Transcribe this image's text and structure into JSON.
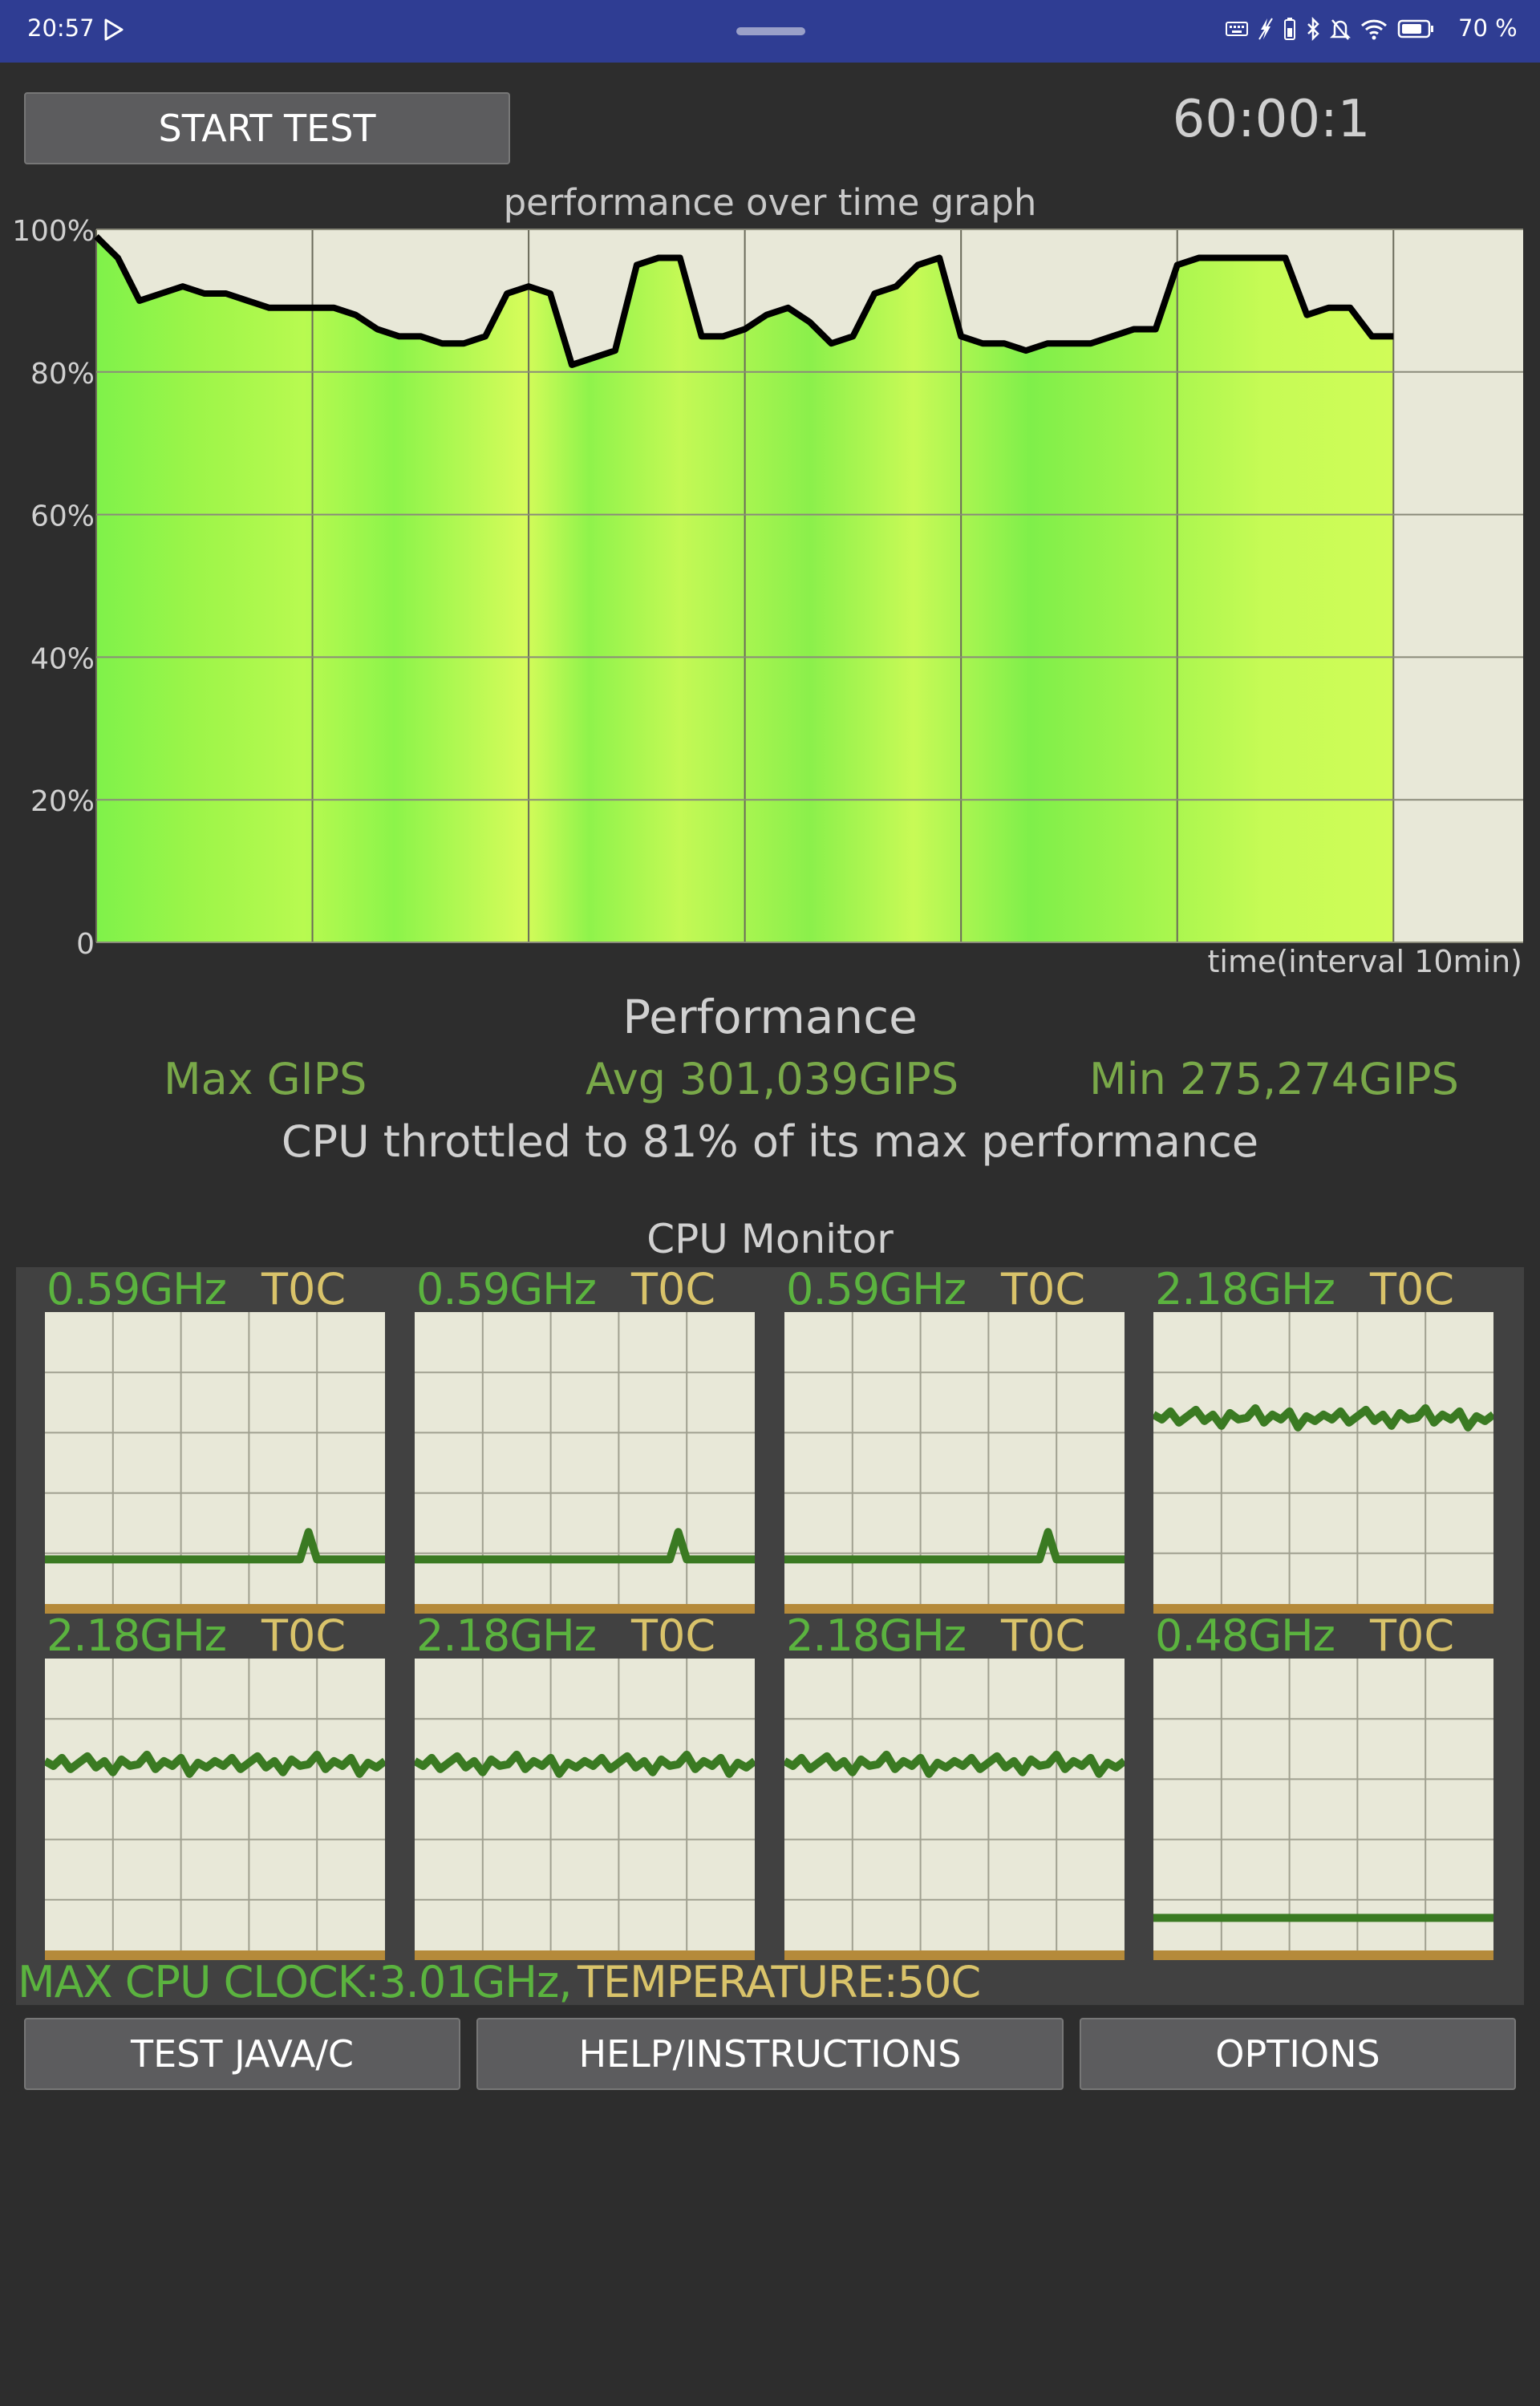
{
  "status_bar": {
    "time": "20:57",
    "battery_text": "70 %",
    "icons": [
      "play-store-icon",
      "keyboard-icon",
      "no-charge-icon",
      "battery-saver-icon",
      "bluetooth-icon",
      "silent-icon",
      "wifi-icon",
      "battery-icon"
    ]
  },
  "controls": {
    "start_button": "START TEST",
    "timer": "60:00:1"
  },
  "graph": {
    "title": "performance over time graph",
    "x_label": "time(interval 10min)",
    "y_ticks": [
      "100%",
      "80%",
      "60%",
      "40%",
      "20%",
      "0"
    ]
  },
  "chart_data": {
    "type": "line",
    "title": "performance over time graph",
    "xlabel": "time(interval 10min)",
    "ylabel": "",
    "ylim": [
      0,
      100
    ],
    "x_unit": "minutes",
    "xlim": [
      0,
      66
    ],
    "grid": true,
    "x": [
      0,
      1,
      2,
      3,
      4,
      5,
      6,
      7,
      8,
      9,
      10,
      11,
      12,
      13,
      14,
      15,
      16,
      17,
      18,
      19,
      20,
      21,
      22,
      23,
      24,
      25,
      26,
      27,
      28,
      29,
      30,
      31,
      32,
      33,
      34,
      35,
      36,
      37,
      38,
      39,
      40,
      41,
      42,
      43,
      44,
      45,
      46,
      47,
      48,
      49,
      50,
      51,
      52,
      53,
      54,
      55,
      56,
      57,
      58,
      59,
      60
    ],
    "series": [
      {
        "values": [
          99,
          96,
          90,
          91,
          92,
          91,
          91,
          90,
          89,
          89,
          89,
          89,
          88,
          86,
          85,
          85,
          84,
          84,
          85,
          91,
          92,
          91,
          81,
          82,
          83,
          95,
          96,
          96,
          85,
          85,
          86,
          88,
          89,
          87,
          84,
          85,
          91,
          92,
          95,
          96,
          85,
          84,
          84,
          83,
          84,
          84,
          84,
          85,
          86,
          86,
          95,
          96,
          96,
          96,
          96,
          96,
          88,
          89,
          89,
          85,
          85
        ]
      }
    ]
  },
  "performance": {
    "title": "Performance",
    "max": "Max GIPS",
    "avg": "Avg 301,039GIPS",
    "min": "Min 275,274GIPS",
    "throttle": "CPU throttled to 81% of its max performance"
  },
  "cpu_monitor": {
    "title": "CPU Monitor",
    "cores": [
      {
        "freq": "0.59GHz",
        "temp": "T0C",
        "level": 0.18,
        "pattern": "spike"
      },
      {
        "freq": "0.59GHz",
        "temp": "T0C",
        "level": 0.18,
        "pattern": "spike"
      },
      {
        "freq": "0.59GHz",
        "temp": "T0C",
        "level": 0.18,
        "pattern": "spike"
      },
      {
        "freq": "2.18GHz",
        "temp": "T0C",
        "level": 0.66,
        "pattern": "wavy"
      },
      {
        "freq": "2.18GHz",
        "temp": "T0C",
        "level": 0.66,
        "pattern": "wavy"
      },
      {
        "freq": "2.18GHz",
        "temp": "T0C",
        "level": 0.66,
        "pattern": "wavy"
      },
      {
        "freq": "2.18GHz",
        "temp": "T0C",
        "level": 0.66,
        "pattern": "wavy"
      },
      {
        "freq": "0.48GHz",
        "temp": "T0C",
        "level": 0.14,
        "pattern": "flat"
      }
    ],
    "max_clock": "MAX CPU CLOCK:3.01GHz,",
    "temperature": "TEMPERATURE:50C"
  },
  "bottom_buttons": {
    "test": "TEST JAVA/C",
    "help": "HELP/INSTRUCTIONS",
    "options": "OPTIONS"
  }
}
